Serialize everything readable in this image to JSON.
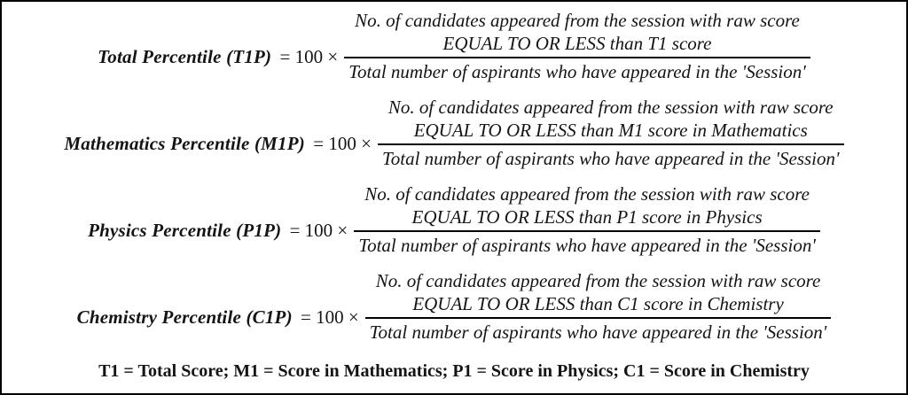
{
  "page": {
    "background_color": "#ffffff",
    "border_color": "#000000",
    "text_color": "#141414"
  },
  "formulas": [
    {
      "id": "total-percentile",
      "label": "Total Percentile (T1P)",
      "multiplier": "= 100 ×",
      "num_line1": "No. of candidates appeared from the session with raw score",
      "num_line2": "EQUAL TO OR LESS than T1 score",
      "denominator": "Total number of aspirants who have appeared in the 'Session'"
    },
    {
      "id": "mathematics-percentile",
      "label": "Mathematics Percentile (M1P)",
      "multiplier": "= 100 ×",
      "num_line1": "No. of candidates appeared from the session with raw score",
      "num_line2": "EQUAL TO OR LESS than M1 score in Mathematics",
      "denominator": "Total number of aspirants who have appeared in the 'Session'"
    },
    {
      "id": "physics-percentile",
      "label": "Physics Percentile (P1P)",
      "multiplier": "= 100 ×",
      "num_line1": "No. of candidates appeared from the session with raw score",
      "num_line2": "EQUAL TO OR LESS than P1 score in Physics",
      "denominator": "Total number of aspirants who have appeared in the 'Session'"
    },
    {
      "id": "chemistry-percentile",
      "label": "Chemistry Percentile (C1P)",
      "multiplier": "= 100 ×",
      "num_line1": "No. of candidates appeared from the session with raw score",
      "num_line2": "EQUAL TO OR LESS than C1 score in Chemistry",
      "denominator": "Total number of aspirants who have appeared in the 'Session'"
    }
  ],
  "footer": {
    "legend": "T1 = Total Score; M1 = Score in Mathematics; P1 = Score in Physics; C1 = Score in Chemistry"
  }
}
